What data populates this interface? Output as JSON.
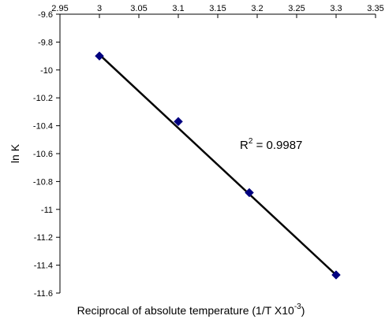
{
  "chart_data": {
    "type": "scatter",
    "title": "",
    "xlabel": "Reciprocal of absolute temperature (1/T X10",
    "xlabel_sup": "-3",
    "xlabel_close": ")",
    "ylabel": "ln K",
    "xlim": [
      2.95,
      3.35
    ],
    "ylim": [
      -11.6,
      -9.6
    ],
    "x_ticks": [
      "2.95",
      "3",
      "3.05",
      "3.1",
      "3.15",
      "3.2",
      "3.25",
      "3.3",
      "3.35"
    ],
    "y_ticks": [
      "-9.6",
      "-9.8",
      "-10",
      "-10.2",
      "-10.4",
      "-10.6",
      "-10.8",
      "-11",
      "-11.2",
      "-11.4",
      "-11.6"
    ],
    "x_axis_position": "top",
    "grid": false,
    "legend": "none",
    "series": [
      {
        "marker": "diamond",
        "color": "#000080",
        "x": [
          3.0,
          3.1,
          3.19,
          3.3
        ],
        "y": [
          -9.9,
          -10.37,
          -10.88,
          -11.47
        ]
      }
    ],
    "trendline": {
      "type": "linear",
      "x": [
        3.0,
        3.3
      ],
      "y": [
        -9.89,
        -11.47
      ],
      "color": "#000000"
    },
    "annotations": [
      {
        "text_prefix": "R",
        "text_sup": "2",
        "text_suffix": " = 0.9987"
      }
    ]
  }
}
